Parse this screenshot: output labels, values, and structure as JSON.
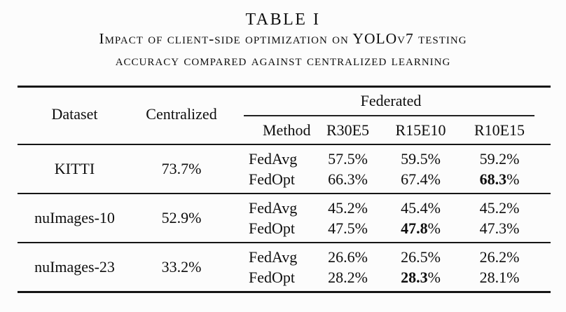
{
  "caption": {
    "label": "TABLE I",
    "line1": "Impact of client-side optimization on YOLOv7 testing",
    "line2": "accuracy compared against centralized learning"
  },
  "table": {
    "pct": "%",
    "header": {
      "dataset": "Dataset",
      "centralized": "Centralized",
      "federated": "Federated",
      "method": "Method",
      "configs": [
        "R30E5",
        "R15E10",
        "R10E15"
      ]
    },
    "groups": [
      {
        "dataset": "KITTI",
        "centralized": "73.7%",
        "rows": [
          {
            "method": "FedAvg",
            "values": [
              {
                "n": "57.5",
                "b": false
              },
              {
                "n": "59.5",
                "b": false
              },
              {
                "n": "59.2",
                "b": false
              }
            ]
          },
          {
            "method": "FedOpt",
            "values": [
              {
                "n": "66.3",
                "b": false
              },
              {
                "n": "67.4",
                "b": false
              },
              {
                "n": "68.3",
                "b": true
              }
            ]
          }
        ]
      },
      {
        "dataset": "nuImages-10",
        "centralized": "52.9%",
        "rows": [
          {
            "method": "FedAvg",
            "values": [
              {
                "n": "45.2",
                "b": false
              },
              {
                "n": "45.4",
                "b": false
              },
              {
                "n": "45.2",
                "b": false
              }
            ]
          },
          {
            "method": "FedOpt",
            "values": [
              {
                "n": "47.5",
                "b": false
              },
              {
                "n": "47.8",
                "b": true
              },
              {
                "n": "47.3",
                "b": false
              }
            ]
          }
        ]
      },
      {
        "dataset": "nuImages-23",
        "centralized": "33.2%",
        "rows": [
          {
            "method": "FedAvg",
            "values": [
              {
                "n": "26.6",
                "b": false
              },
              {
                "n": "26.5",
                "b": false
              },
              {
                "n": "26.2",
                "b": false
              }
            ]
          },
          {
            "method": "FedOpt",
            "values": [
              {
                "n": "28.2",
                "b": false
              },
              {
                "n": "28.3",
                "b": true
              },
              {
                "n": "28.1",
                "b": false
              }
            ]
          }
        ]
      }
    ]
  }
}
